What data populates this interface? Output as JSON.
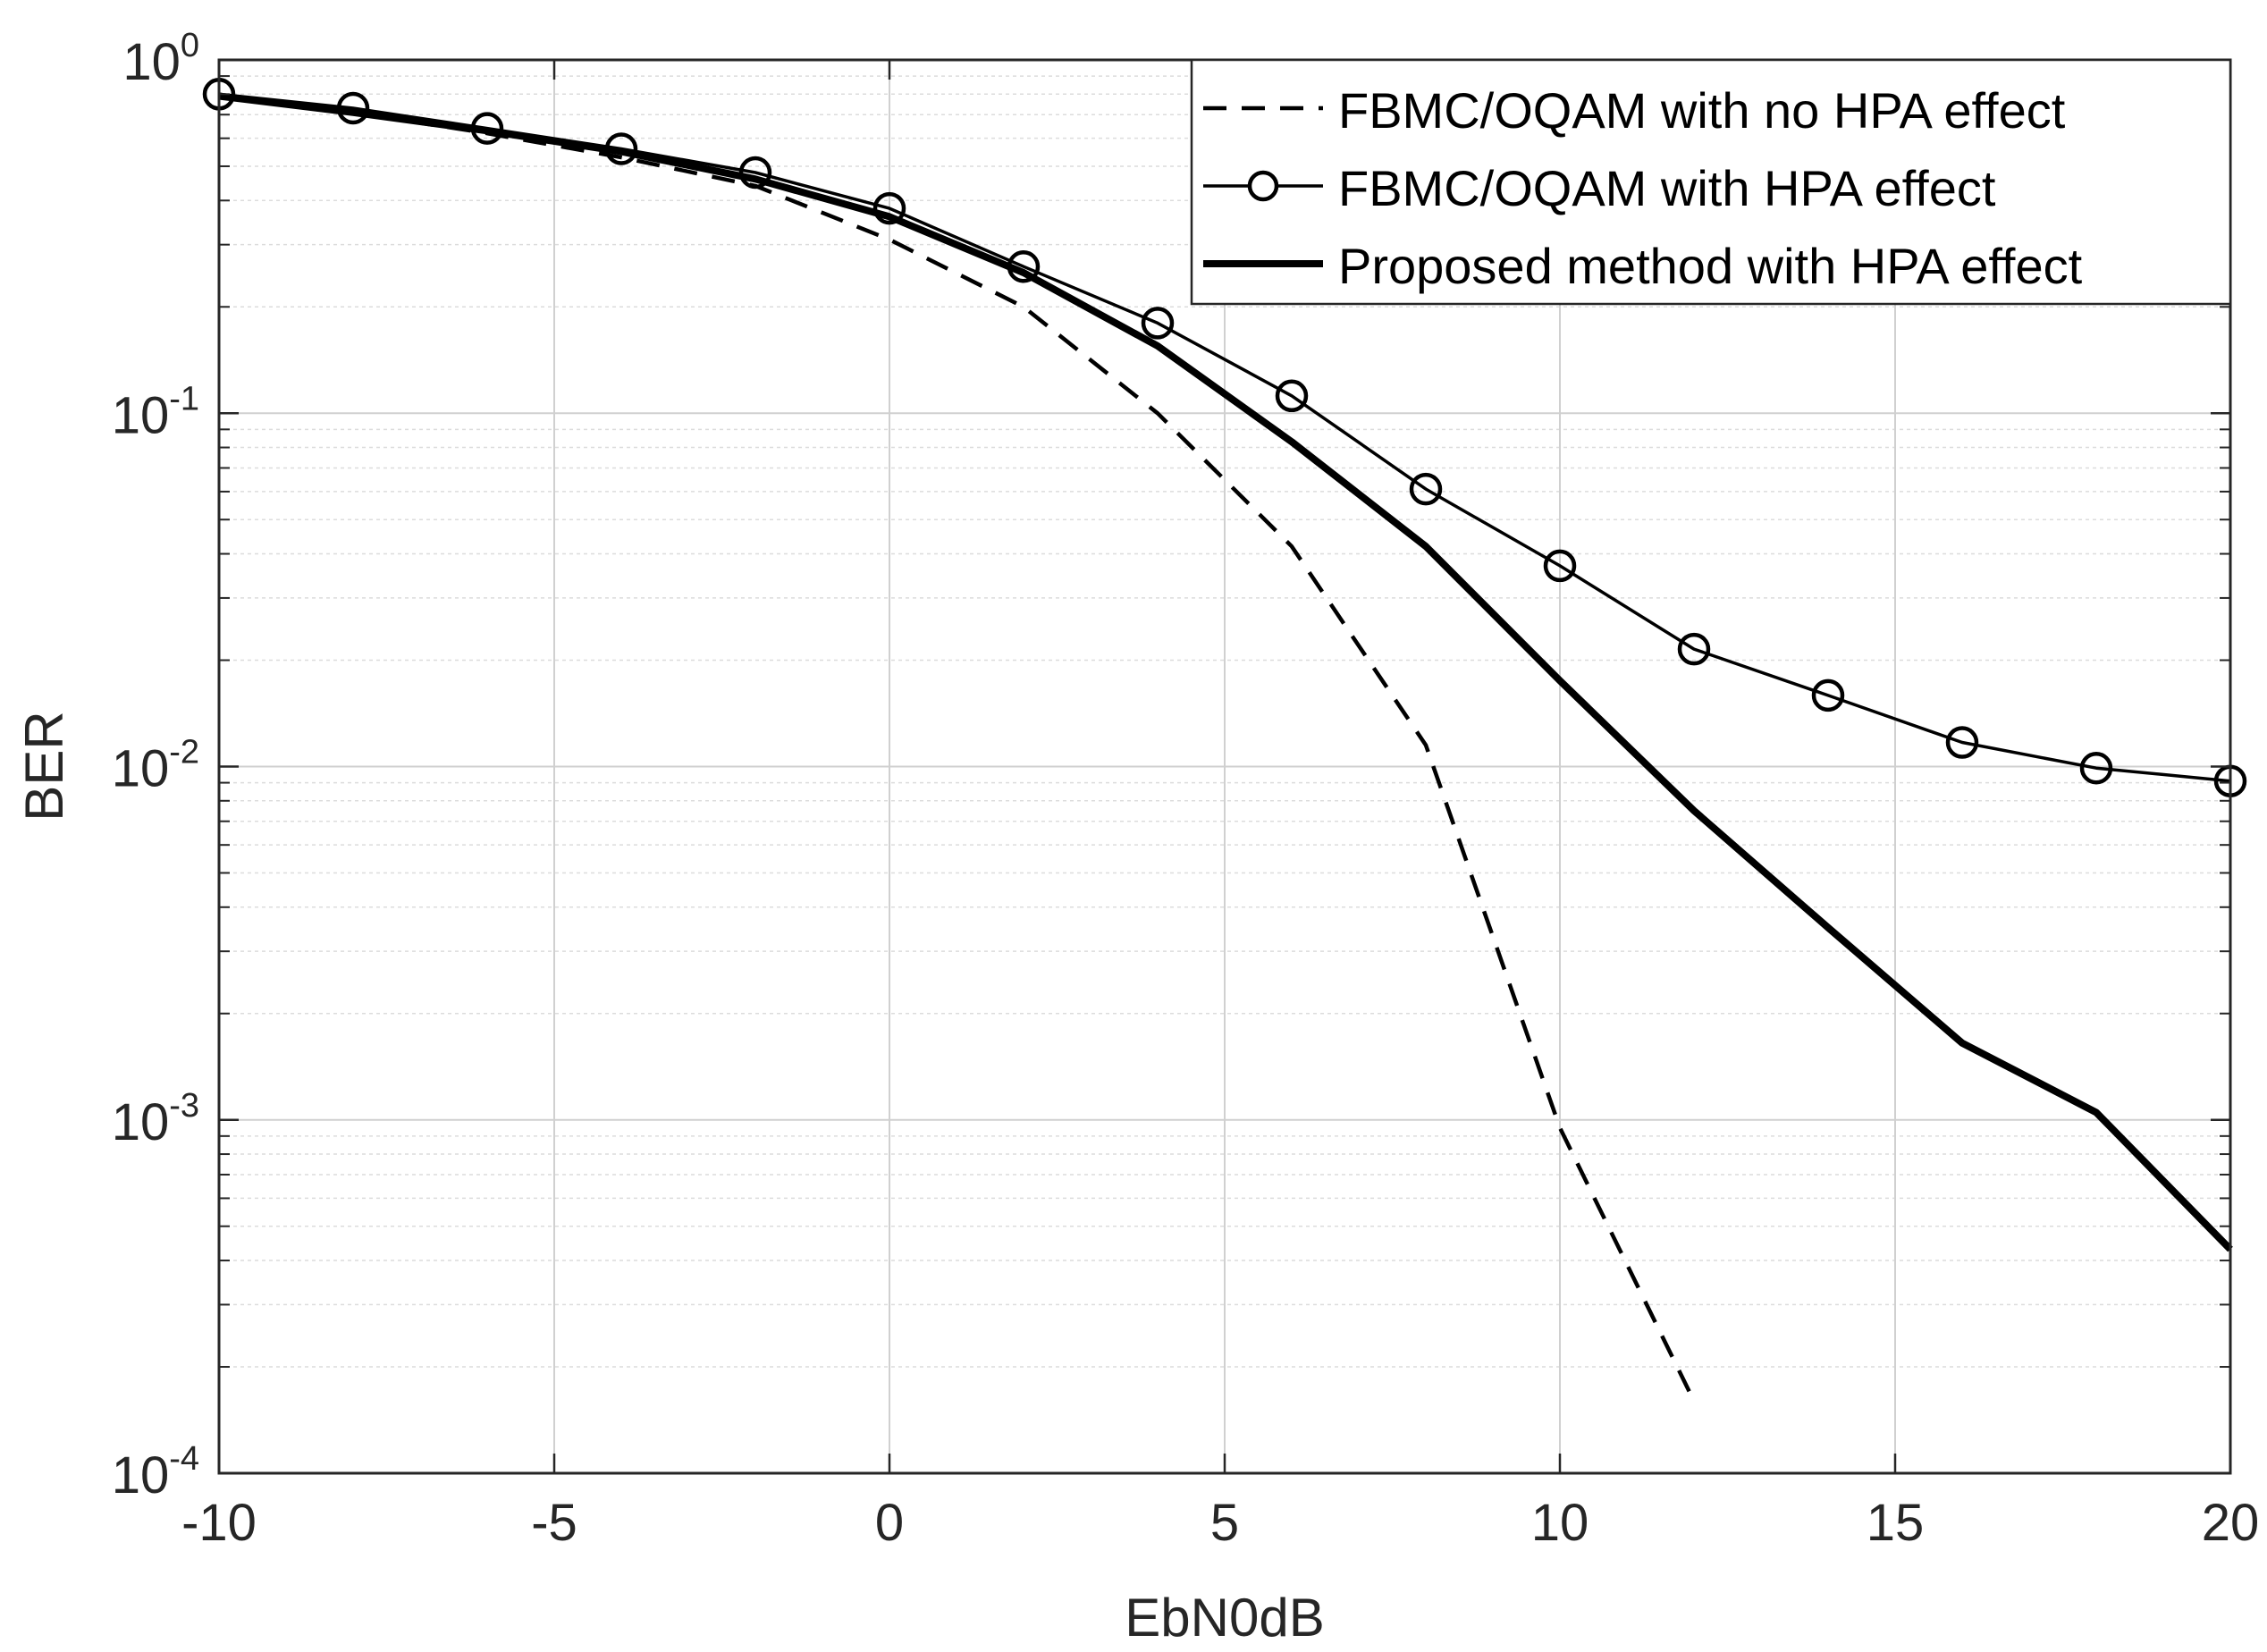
{
  "chart_data": {
    "type": "line",
    "xlabel": "EbN0dB",
    "ylabel": "BER",
    "xscale": "linear",
    "yscale": "log",
    "xlim": [
      -10,
      20
    ],
    "ylim": [
      0.0001,
      1
    ],
    "grid": true,
    "minor_grid": true,
    "xticks": [
      -10,
      -5,
      0,
      5,
      10,
      15,
      20
    ],
    "yticks": [
      {
        "base": "10",
        "exp": "-4",
        "value": 0.0001
      },
      {
        "base": "10",
        "exp": "-3",
        "value": 0.001
      },
      {
        "base": "10",
        "exp": "-2",
        "value": 0.01
      },
      {
        "base": "10",
        "exp": "-1",
        "value": 0.1
      },
      {
        "base": "10",
        "exp": "0",
        "value": 1
      }
    ],
    "legend_position": "top-right",
    "series": [
      {
        "name": "FBMC/OQAM with no HPA effect",
        "style": "dashed",
        "marker": "none",
        "color": "#000000",
        "x": [
          -10,
          -8,
          -6,
          -4,
          -2,
          0,
          2,
          4,
          6,
          8,
          10,
          12
        ],
        "y": [
          0.79,
          0.71,
          0.62,
          0.53,
          0.44,
          0.31,
          0.2,
          0.1,
          0.042,
          0.0115,
          0.00095,
          0.00016
        ]
      },
      {
        "name": "FBMC/OQAM with HPA effect",
        "style": "solid",
        "marker": "circle",
        "color": "#000000",
        "x": [
          -10,
          -8,
          -6,
          -4,
          -2,
          0,
          2,
          4,
          6,
          8,
          10,
          12,
          14,
          16,
          18,
          20
        ],
        "y": [
          0.8,
          0.73,
          0.64,
          0.56,
          0.48,
          0.38,
          0.26,
          0.18,
          0.112,
          0.061,
          0.037,
          0.0215,
          0.0159,
          0.0117,
          0.0099,
          0.0091
        ]
      },
      {
        "name": "Proposed method with HPA effect",
        "style": "solid-thick",
        "marker": "none",
        "color": "#000000",
        "x": [
          -10,
          -8,
          -6,
          -4,
          -2,
          0,
          2,
          4,
          6,
          8,
          10,
          12,
          14,
          16,
          18,
          20
        ],
        "y": [
          0.79,
          0.71,
          0.63,
          0.55,
          0.46,
          0.36,
          0.25,
          0.155,
          0.083,
          0.042,
          0.0175,
          0.0075,
          0.0035,
          0.00165,
          0.00105,
          0.00043
        ]
      }
    ]
  }
}
